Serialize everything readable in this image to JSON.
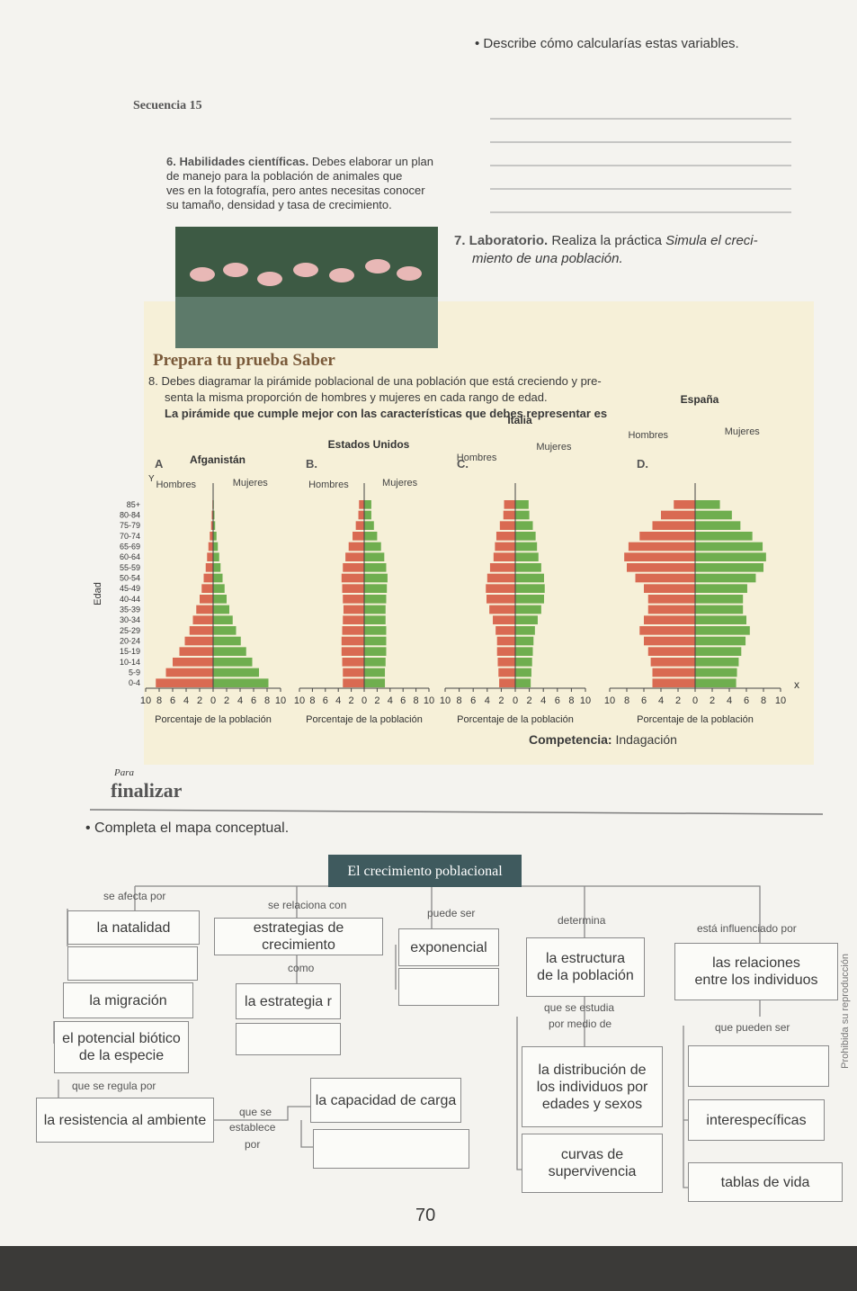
{
  "header": {
    "sequence": "Secuencia 15"
  },
  "activity6": {
    "label": "6. Habilidades científicas.",
    "lines": [
      "Debes elaborar un plan",
      "de manejo para la población de animales que",
      "ves en la fotografía, pero antes necesitas conocer",
      "su tamaño, densidad y tasa de crecimiento."
    ]
  },
  "question": "Describe cómo calcularías estas variables.",
  "activity7": {
    "label": "7. Laboratorio.",
    "text": "Realiza la práctica",
    "lines": [
      "Simula el creci-",
      "miento de una población."
    ]
  },
  "prepara": {
    "title": "Prepara tu prueba Saber",
    "lines": [
      "8. Debes diagramar la pirámide poblacional de una población que está creciendo y pre-",
      "senta la misma proporción de hombres y mujeres en cada rango de edad."
    ],
    "prompt": "La pirámide que cumple mejor con las características que debes representar es",
    "competence_label": "Competencia:",
    "competence": "Indagación"
  },
  "pyramids": [
    {
      "type": "bar",
      "letter": "A",
      "title": "Afganistán",
      "ylabel": "Edad",
      "y_axis_letter": "Y",
      "categories": [
        "0-4",
        "5-9",
        "10-14",
        "15-19",
        "20-24",
        "25-29",
        "30-34",
        "35-39",
        "40-44",
        "45-49",
        "50-54",
        "55-59",
        "60-64",
        "65-69",
        "70-74",
        "75-79",
        "80-84",
        "85+"
      ],
      "series": [
        {
          "name": "Hombres",
          "color": "#d96a52",
          "values": [
            8.5,
            7,
            6,
            5,
            4.2,
            3.5,
            3,
            2.5,
            2,
            1.7,
            1.4,
            1.1,
            0.9,
            0.7,
            0.5,
            0.3,
            0.2,
            0.1
          ]
        },
        {
          "name": "Mujeres",
          "color": "#6fae4f",
          "values": [
            8.2,
            6.8,
            5.8,
            4.9,
            4.1,
            3.4,
            2.9,
            2.4,
            2,
            1.7,
            1.4,
            1.1,
            0.9,
            0.7,
            0.5,
            0.3,
            0.2,
            0.1
          ]
        }
      ],
      "xlim": [
        0,
        10
      ],
      "xticks": [
        0,
        2,
        4,
        6,
        8,
        10
      ],
      "xlabel": "Porcentaje de la población"
    },
    {
      "type": "bar",
      "letter": "B.",
      "title": "Estados Unidos",
      "series": [
        {
          "name": "Hombres",
          "color": "#d96a52",
          "values": [
            3.3,
            3.3,
            3.4,
            3.5,
            3.5,
            3.4,
            3.3,
            3.2,
            3.3,
            3.4,
            3.5,
            3.3,
            2.9,
            2.4,
            1.8,
            1.3,
            0.9,
            0.8
          ]
        },
        {
          "name": "Mujeres",
          "color": "#6fae4f",
          "values": [
            3.2,
            3.2,
            3.3,
            3.4,
            3.4,
            3.4,
            3.3,
            3.3,
            3.4,
            3.5,
            3.6,
            3.4,
            3.1,
            2.6,
            2,
            1.5,
            1.1,
            1.1
          ]
        }
      ],
      "xlim": [
        0,
        10
      ],
      "xticks": [
        0,
        2,
        4,
        6,
        8,
        10
      ],
      "xlabel": "Porcentaje de la población"
    },
    {
      "type": "bar",
      "letter": "C.",
      "title": "Italia",
      "series": [
        {
          "name": "Hombres",
          "color": "#d96a52",
          "values": [
            2.3,
            2.4,
            2.5,
            2.6,
            2.6,
            2.8,
            3.2,
            3.7,
            4.1,
            4.2,
            4,
            3.6,
            3.1,
            2.9,
            2.7,
            2.2,
            1.7,
            1.6
          ]
        },
        {
          "name": "Mujeres",
          "color": "#6fae4f",
          "values": [
            2.2,
            2.3,
            2.4,
            2.5,
            2.6,
            2.8,
            3.2,
            3.7,
            4.1,
            4.2,
            4.1,
            3.7,
            3.3,
            3.1,
            2.9,
            2.5,
            2,
            1.9
          ]
        }
      ],
      "xlim": [
        0,
        10
      ],
      "xticks": [
        0,
        2,
        4,
        6,
        8,
        10
      ],
      "xlabel": "Porcentaje de la población"
    },
    {
      "type": "bar",
      "letter": "D.",
      "title": "España",
      "x_axis_letter": "x",
      "series": [
        {
          "name": "Hombres",
          "color": "#d96a52",
          "values": [
            5,
            5,
            5.2,
            5.5,
            6,
            6.5,
            6,
            5.5,
            5.5,
            6,
            7,
            8,
            8.3,
            7.8,
            6.5,
            5,
            4,
            2.5
          ]
        },
        {
          "name": "Mujeres",
          "color": "#6fae4f",
          "values": [
            4.8,
            4.9,
            5.1,
            5.4,
            5.9,
            6.4,
            6,
            5.6,
            5.6,
            6.1,
            7.1,
            8,
            8.3,
            7.9,
            6.7,
            5.3,
            4.3,
            2.9
          ]
        }
      ],
      "xlim": [
        0,
        10
      ],
      "xticks": [
        0,
        2,
        4,
        6,
        8,
        10
      ],
      "xlabel": "Porcentaje de la población"
    }
  ],
  "finalizar": {
    "pre": "Para",
    "title": "finalizar",
    "instruction": "Completa el mapa conceptual."
  },
  "concept_map": {
    "title": "El crecimiento poblacional",
    "links": [
      "se afecta por",
      "se relaciona con",
      "puede ser",
      "determina",
      "está influenciado por",
      "como",
      "que se estudia",
      "por medio de",
      "que pueden ser",
      "que se regula por",
      "que se",
      "establece",
      "por"
    ],
    "nodes": [
      "la natalidad",
      "la migración",
      "el potencial biótico",
      "de la especie",
      "la resistencia al ambiente",
      "estrategias de crecimiento",
      "la estrategia r",
      "exponencial",
      "la capacidad de carga",
      "la estructura",
      "de la población",
      "la distribución de",
      "los individuos por",
      "edades y sexos",
      "curvas de",
      "supervivencia",
      "las relaciones",
      "entre los individuos",
      "interespecíficas",
      "tablas de vida"
    ]
  },
  "page_number": "70",
  "side_note": "Prohibida su reproducción"
}
